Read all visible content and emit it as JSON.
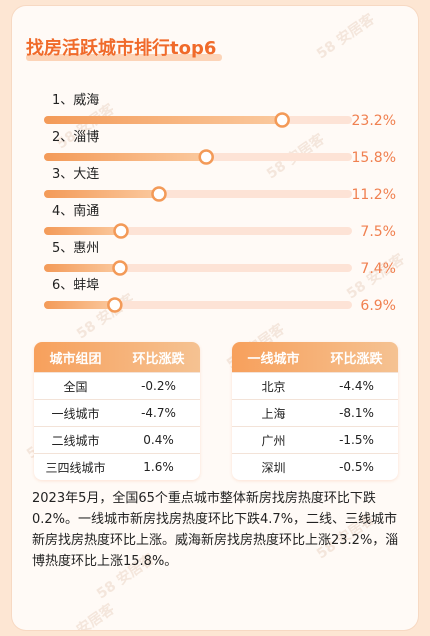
{
  "title": "找房活跃城市排行top6",
  "chart_data": {
    "type": "bar",
    "orientation": "horizontal",
    "title": "找房活跃城市排行top6",
    "categories": [
      "1、威海",
      "2、淄博",
      "3、大连",
      "4、南通",
      "5、惠州",
      "6、蚌埠"
    ],
    "values": [
      23.2,
      15.8,
      11.2,
      7.5,
      7.4,
      6.9
    ],
    "value_labels": [
      "23.2%",
      "15.8%",
      "11.2%",
      "7.5%",
      "7.4%",
      "6.9%"
    ],
    "xlim": [
      0,
      30
    ],
    "unit": "%",
    "grid": false
  },
  "watermark": "58 安居客",
  "colors": {
    "accent": "#f06a2a",
    "bar_start": "#f39a58",
    "bar_end": "#fbc99e",
    "track": "#fde3d6",
    "value_text": "#f08050"
  },
  "table_left": {
    "headers": [
      "城市组团",
      "环比涨跌"
    ],
    "rows": [
      [
        "全国",
        "-0.2%"
      ],
      [
        "一线城市",
        "-4.7%"
      ],
      [
        "二线城市",
        "0.4%"
      ],
      [
        "三四线城市",
        "1.6%"
      ]
    ]
  },
  "table_right": {
    "headers": [
      "一线城市",
      "环比涨跌"
    ],
    "rows": [
      [
        "北京",
        "-4.4%"
      ],
      [
        "上海",
        "-8.1%"
      ],
      [
        "广州",
        "-1.5%"
      ],
      [
        "深圳",
        "-0.5%"
      ]
    ]
  },
  "summary": "2023年5月，全国65个重点城市整体新房找房热度环比下跌0.2%。一线城市新房找房热度环比下跌4.7%，二线、三线城市新房找房热度环比上涨。威海新房找房热度环比上涨23.2%，淄博热度环比上涨15.8%。"
}
